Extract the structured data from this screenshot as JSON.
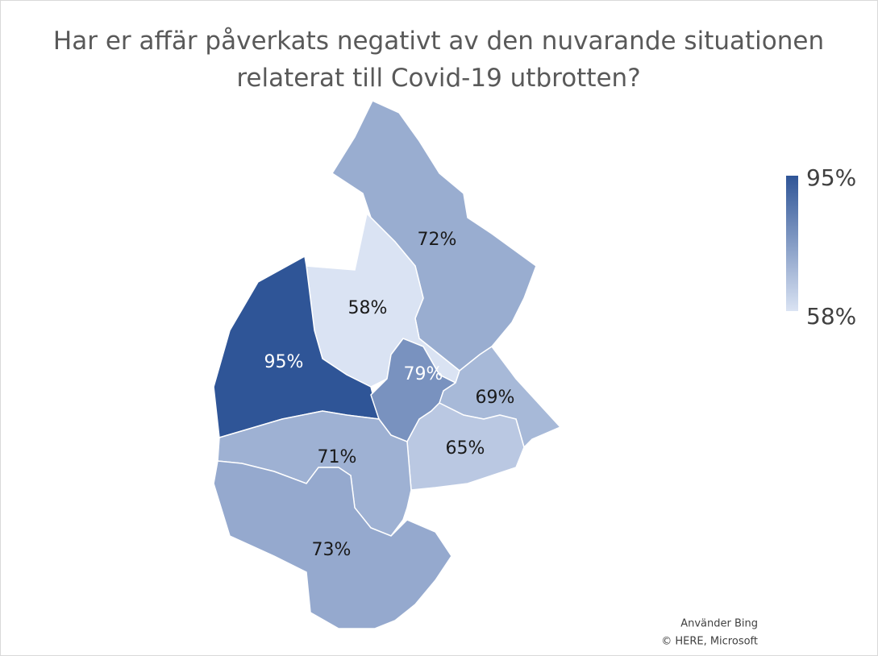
{
  "chart_data": {
    "type": "choropleth",
    "title": "Har er affär påverkats negativt av den nuvarande situationen relaterat till Covid-19 utbrotten?",
    "values": [
      72,
      58,
      95,
      79,
      69,
      65,
      71,
      73
    ],
    "value_labels": [
      "72%",
      "58%",
      "95%",
      "79%",
      "69%",
      "65%",
      "71%",
      "73%"
    ],
    "color_scale": [
      "#dae3f3",
      "#2f5597"
    ],
    "legend": {
      "ticks": [
        {
          "value": 58,
          "label": "58%"
        },
        {
          "value": 95,
          "label": "95%"
        }
      ]
    },
    "attribution": [
      "Använder Bing",
      "© HERE, Microsoft"
    ]
  }
}
